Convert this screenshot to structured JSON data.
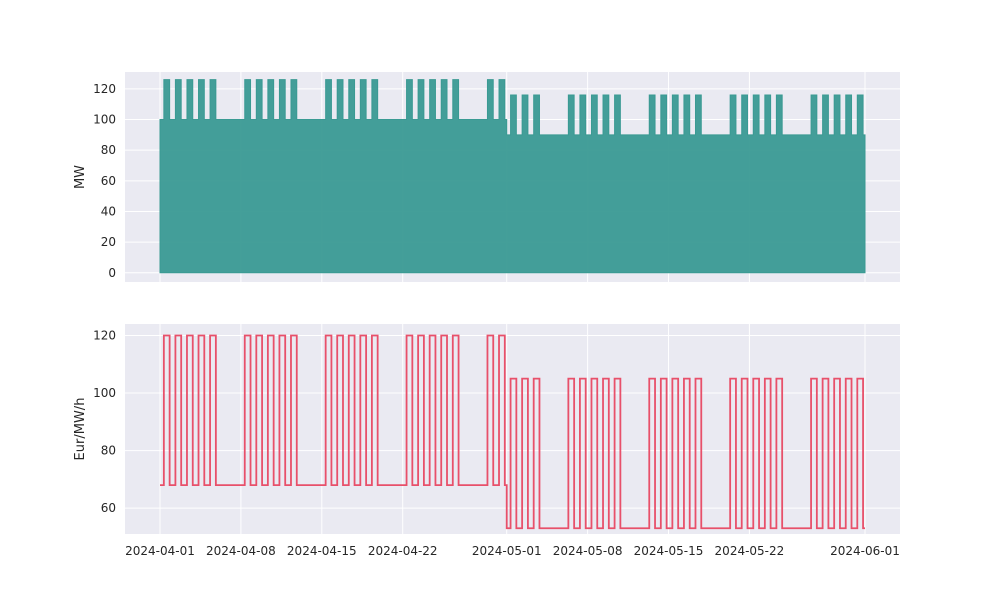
{
  "chart_data": [
    {
      "type": "area",
      "ylabel": "MW",
      "xlabel": "",
      "ylim": [
        -6,
        131
      ],
      "yticks": [
        0,
        20,
        40,
        60,
        80,
        100,
        120
      ],
      "grid": true,
      "color": "#3a9a93",
      "profile": {
        "period1": {
          "from": "2024-04-01",
          "to": "2024-05-01",
          "base": 100,
          "peak": 126,
          "peak_weekdays_only": true
        },
        "period2": {
          "from": "2024-05-01",
          "to": "2024-06-01",
          "base": 90,
          "peak": 116,
          "peak_weekdays_only": true
        },
        "peak_hours": "daytime"
      }
    },
    {
      "type": "line",
      "ylabel": "Eur/MW/h",
      "xlabel": "",
      "ylim": [
        51,
        124
      ],
      "yticks": [
        60,
        80,
        100,
        120
      ],
      "grid": true,
      "color": "#e8506a",
      "profile": {
        "period1": {
          "from": "2024-04-01",
          "to": "2024-05-01",
          "offpeak": 68,
          "peak": 120,
          "peak_weekdays_only": true
        },
        "period2": {
          "from": "2024-05-01",
          "to": "2024-06-01",
          "offpeak": 53,
          "peak": 105,
          "peak_weekdays_only": true
        },
        "peak_hours": "daytime"
      }
    }
  ],
  "x_axis": {
    "start": "2024-04-01",
    "end": "2024-06-01",
    "tick_labels": [
      "2024-04-01",
      "2024-04-08",
      "2024-04-15",
      "2024-04-22",
      "2024-05-01",
      "2024-05-08",
      "2024-05-15",
      "2024-05-22",
      "2024-06-01"
    ]
  },
  "style": {
    "panel_background": "#eaeaf2",
    "grid_color": "#ffffff"
  }
}
